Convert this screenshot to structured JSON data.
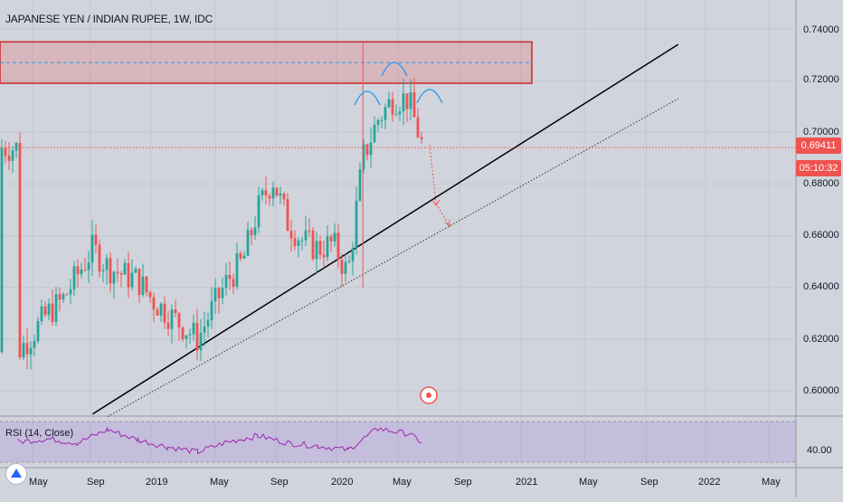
{
  "header": {
    "symbol_title": "JAPANESE YEN / INDIAN RUPEE, 1W, IDC"
  },
  "price_axis": {
    "ticks": [
      "0.74000",
      "0.72000",
      "0.70000",
      "0.68000",
      "0.66000",
      "0.64000",
      "0.62000",
      "0.60000"
    ],
    "last_price": "0.69411",
    "countdown": "05:10:32"
  },
  "time_axis": {
    "ticks": [
      "May",
      "Sep",
      "2019",
      "May",
      "Sep",
      "2020",
      "May",
      "Sep",
      "2021",
      "May",
      "Sep",
      "2022",
      "May"
    ]
  },
  "rsi": {
    "title": "RSI (14, Close)",
    "axis_value": "40.00"
  },
  "colors": {
    "background": "#d1d4dc",
    "up_candle": "#26a69a",
    "down_candle": "#ef5350",
    "resistance_zone": "#c62828",
    "pattern_arc": "#2196f3",
    "rsi_line": "#9c27b0",
    "rsi_band": "#c9b8e8"
  },
  "chart_data": [
    {
      "type": "line",
      "title": "JAPANESE YEN / INDIAN RUPEE, 1W, IDC",
      "xlabel": "",
      "ylabel": "",
      "ylim": [
        0.59,
        0.745
      ],
      "scale": "linear",
      "grid": true,
      "series": [
        {
          "name": "",
          "x": [
            "2018-04",
            "2018-05",
            "2018-06",
            "2018-07",
            "2018-08",
            "2018-09",
            "2018-10",
            "2018-11",
            "2018-12",
            "2019-01",
            "2019-02",
            "2019-03",
            "2019-04",
            "2019-05",
            "2019-06",
            "2019-07",
            "2019-08",
            "2019-09",
            "2019-10",
            "2019-11",
            "2019-12",
            "2020-01",
            "2020-02",
            "2020-03",
            "2020-04",
            "2020-05",
            "2020-06",
            "2020-07"
          ],
          "values": [
            0.615,
            0.622,
            0.63,
            0.635,
            0.645,
            0.655,
            0.648,
            0.645,
            0.643,
            0.635,
            0.63,
            0.625,
            0.62,
            0.632,
            0.643,
            0.65,
            0.67,
            0.682,
            0.665,
            0.658,
            0.655,
            0.657,
            0.645,
            0.69,
            0.705,
            0.713,
            0.713,
            0.694
          ]
        }
      ],
      "annotations": [
        "resistance zone 0.719–0.735",
        "head and shoulders pattern",
        "ascending trendline",
        "dotted parallel trendline",
        "projected decline arrow"
      ]
    },
    {
      "type": "line",
      "title": "RSI (14, Close)",
      "ylim": [
        30,
        70
      ],
      "series": [
        {
          "name": "",
          "x": [
            "2018-04",
            "2018-06",
            "2018-08",
            "2018-10",
            "2018-12",
            "2019-02",
            "2019-04",
            "2019-06",
            "2019-08",
            "2019-10",
            "2019-12",
            "2020-02",
            "2020-04",
            "2020-06",
            "2020-07"
          ],
          "values": [
            50,
            53,
            49,
            62,
            52,
            45,
            40,
            50,
            56,
            49,
            46,
            42,
            63,
            58,
            49
          ]
        }
      ]
    }
  ]
}
